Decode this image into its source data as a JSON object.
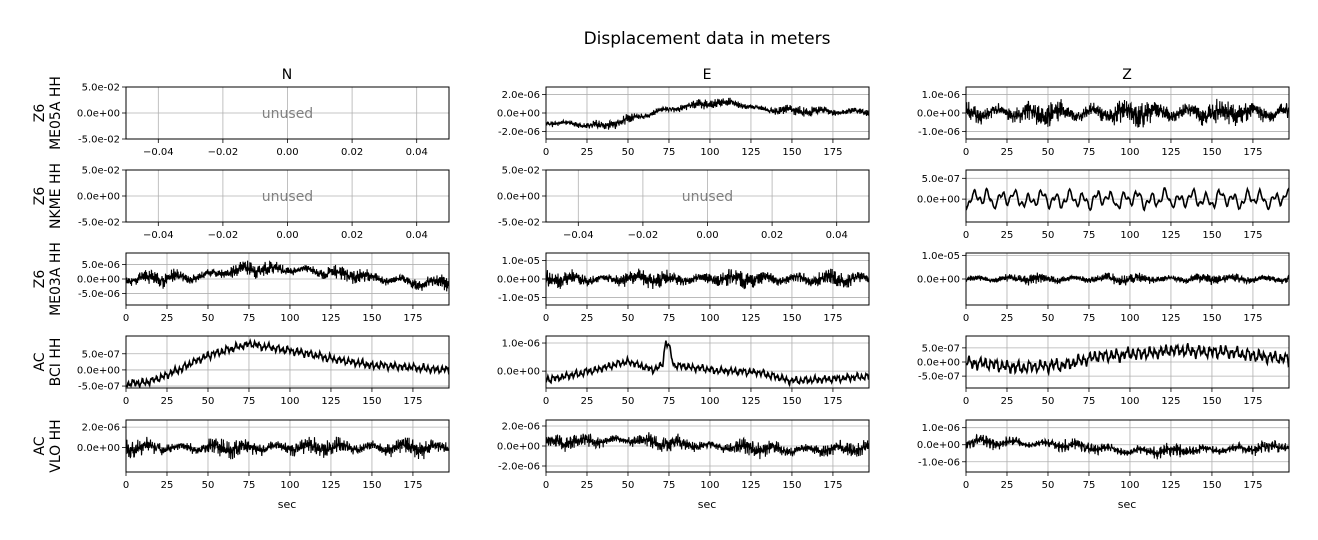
{
  "title": "Displacement data in meters",
  "column_titles": [
    "N",
    "E",
    "Z"
  ],
  "xlabel": "sec",
  "rows": [
    {
      "network": "Z6",
      "station": "ME05A HH"
    },
    {
      "network": "Z6",
      "station": "NKME HH"
    },
    {
      "network": "Z6",
      "station": "ME03A HH"
    },
    {
      "network": "AC",
      "station": "BCI HH"
    },
    {
      "network": "AC",
      "station": "VLO HH"
    }
  ],
  "unused_label": "unused",
  "colors": {
    "trace": "#000000",
    "grid": "#b0b0b0",
    "unused_text": "#808080"
  },
  "chart_data": [
    {
      "type": "line",
      "row": 0,
      "col": "N",
      "unused": true,
      "xlim": [
        -0.05,
        0.05
      ],
      "ylim": [
        -0.05,
        0.05
      ],
      "xticks": [
        -0.04,
        -0.02,
        0.0,
        0.02,
        0.04
      ],
      "xticklabels": [
        "−0.04",
        "−0.02",
        "0.00",
        "0.02",
        "0.04"
      ],
      "yticks": [
        0.05,
        0.0,
        -0.05
      ],
      "yticklabels": [
        "5.0e-02",
        "0.0e+00",
        "-5.0e-02"
      ]
    },
    {
      "type": "line",
      "row": 0,
      "col": "E",
      "unused": false,
      "xlim": [
        0,
        197
      ],
      "ylim": [
        -2.8e-06,
        2.8e-06
      ],
      "xticks": [
        0,
        25,
        50,
        75,
        100,
        125,
        150,
        175
      ],
      "xticklabels": [
        "0",
        "25",
        "50",
        "75",
        "100",
        "125",
        "150",
        "175"
      ],
      "yticks": [
        2e-06,
        0.0,
        -2e-06
      ],
      "yticklabels": [
        "2.0e-06",
        "0.0e+00",
        "-2.0e-06"
      ],
      "trend": [
        [
          0,
          -1e-06
        ],
        [
          35,
          -1.4e-06
        ],
        [
          60,
          -2e-07
        ],
        [
          80,
          6e-07
        ],
        [
          100,
          1e-06
        ],
        [
          115,
          1.1e-06
        ],
        [
          130,
          4e-07
        ],
        [
          160,
          2e-07
        ],
        [
          197,
          1e-07
        ]
      ],
      "noise_amp": 6e-07,
      "freq": 1.2,
      "seed": 11
    },
    {
      "type": "line",
      "row": 0,
      "col": "Z",
      "unused": false,
      "xlim": [
        0,
        197
      ],
      "ylim": [
        -1.4e-06,
        1.4e-06
      ],
      "xticks": [
        0,
        25,
        50,
        75,
        100,
        125,
        150,
        175
      ],
      "xticklabels": [
        "0",
        "25",
        "50",
        "75",
        "100",
        "125",
        "150",
        "175"
      ],
      "yticks": [
        1e-06,
        0.0,
        -1e-06
      ],
      "yticklabels": [
        "1.0e-06",
        "0.0e+00",
        "-1.0e-06"
      ],
      "trend": [
        [
          0,
          0.0
        ],
        [
          197,
          0.0
        ]
      ],
      "noise_amp": 7.5e-07,
      "freq": 1.6,
      "seed": 21
    },
    {
      "type": "line",
      "row": 1,
      "col": "N",
      "unused": true,
      "xlim": [
        -0.05,
        0.05
      ],
      "ylim": [
        -0.05,
        0.05
      ],
      "xticks": [
        -0.04,
        -0.02,
        0.0,
        0.02,
        0.04
      ],
      "xticklabels": [
        "−0.04",
        "−0.02",
        "0.00",
        "0.02",
        "0.04"
      ],
      "yticks": [
        0.05,
        0.0,
        -0.05
      ],
      "yticklabels": [
        "5.0e-02",
        "0.0e+00",
        "-5.0e-02"
      ]
    },
    {
      "type": "line",
      "row": 1,
      "col": "E",
      "unused": true,
      "xlim": [
        -0.05,
        0.05
      ],
      "ylim": [
        -0.05,
        0.05
      ],
      "xticks": [
        -0.04,
        -0.02,
        0.0,
        0.02,
        0.04
      ],
      "xticklabels": [
        "−0.04",
        "−0.02",
        "0.00",
        "0.02",
        "0.04"
      ],
      "yticks": [
        0.05,
        0.0,
        -0.05
      ],
      "yticklabels": [
        "5.0e-02",
        "0.0e+00",
        "-5.0e-02"
      ]
    },
    {
      "type": "line",
      "row": 1,
      "col": "Z",
      "unused": false,
      "xlim": [
        0,
        197
      ],
      "ylim": [
        -5.5e-07,
        7e-07
      ],
      "xticks": [
        0,
        25,
        50,
        75,
        100,
        125,
        150,
        175
      ],
      "xticklabels": [
        "0",
        "25",
        "50",
        "75",
        "100",
        "125",
        "150",
        "175"
      ],
      "yticks": [
        5e-07,
        0.0
      ],
      "yticklabels": [
        "5.0e-07",
        "0.0e+00"
      ],
      "trend": [
        [
          0,
          0.0
        ],
        [
          197,
          0.0
        ]
      ],
      "noise_amp": 2.2e-07,
      "freq": 0.12,
      "seed": 31,
      "smooth": true
    },
    {
      "type": "line",
      "row": 2,
      "col": "N",
      "unused": false,
      "xlim": [
        0,
        197
      ],
      "ylim": [
        -9e-06,
        9e-06
      ],
      "xticks": [
        0,
        25,
        50,
        75,
        100,
        125,
        150,
        175
      ],
      "xticklabels": [
        "0",
        "25",
        "50",
        "75",
        "100",
        "125",
        "150",
        "175"
      ],
      "yticks": [
        5e-06,
        0.0,
        -5e-06
      ],
      "yticklabels": [
        "5.0e-06",
        "0.0e+00",
        "-5.0e-06"
      ],
      "trend": [
        [
          0,
          0.0
        ],
        [
          40,
          5e-07
        ],
        [
          75,
          3.5e-06
        ],
        [
          110,
          3e-06
        ],
        [
          150,
          5e-07
        ],
        [
          180,
          -1.5e-06
        ],
        [
          197,
          -1e-06
        ]
      ],
      "noise_amp": 3e-06,
      "freq": 1.4,
      "seed": 41
    },
    {
      "type": "line",
      "row": 2,
      "col": "E",
      "unused": false,
      "xlim": [
        0,
        197
      ],
      "ylim": [
        -1.4e-05,
        1.4e-05
      ],
      "xticks": [
        0,
        25,
        50,
        75,
        100,
        125,
        150,
        175
      ],
      "xticklabels": [
        "0",
        "25",
        "50",
        "75",
        "100",
        "125",
        "150",
        "175"
      ],
      "yticks": [
        1e-05,
        0.0,
        -1e-05
      ],
      "yticklabels": [
        "1.0e-05",
        "0.0e+00",
        "-1.0e-05"
      ],
      "trend": [
        [
          0,
          0.0
        ],
        [
          197,
          0.0
        ]
      ],
      "noise_amp": 5e-06,
      "freq": 1.4,
      "seed": 51
    },
    {
      "type": "line",
      "row": 2,
      "col": "Z",
      "unused": false,
      "xlim": [
        0,
        197
      ],
      "ylim": [
        -1.1e-05,
        1.1e-05
      ],
      "xticks": [
        0,
        25,
        50,
        75,
        100,
        125,
        150,
        175
      ],
      "xticklabels": [
        "0",
        "25",
        "50",
        "75",
        "100",
        "125",
        "150",
        "175"
      ],
      "yticks": [
        1e-05,
        0.0
      ],
      "yticklabels": [
        "1.0e-05",
        "0.0e+00"
      ],
      "trend": [
        [
          0,
          0.0
        ],
        [
          197,
          0.0
        ]
      ],
      "noise_amp": 2.5e-06,
      "freq": 1.3,
      "seed": 61
    },
    {
      "type": "line",
      "row": 3,
      "col": "N",
      "unused": false,
      "xlim": [
        0,
        197
      ],
      "ylim": [
        -5.6e-07,
        1.05e-06
      ],
      "xticks": [
        0,
        25,
        50,
        75,
        100,
        125,
        150,
        175
      ],
      "xticklabels": [
        "0",
        "25",
        "50",
        "75",
        "100",
        "125",
        "150",
        "175"
      ],
      "yticks": [
        5e-07,
        0.0,
        -5e-07
      ],
      "yticklabels": [
        "5.0e-07",
        "0.0e+00",
        "-5.0e-07"
      ],
      "trend": [
        [
          0,
          -4.5e-07
        ],
        [
          15,
          -3.5e-07
        ],
        [
          30,
          -5e-08
        ],
        [
          50,
          4.5e-07
        ],
        [
          75,
          8e-07
        ],
        [
          100,
          6e-07
        ],
        [
          125,
          3.5e-07
        ],
        [
          150,
          1.5e-07
        ],
        [
          197,
          0.0
        ]
      ],
      "noise_amp": 1.2e-07,
      "freq": 0.35,
      "seed": 71,
      "smooth": true
    },
    {
      "type": "line",
      "row": 3,
      "col": "E",
      "unused": false,
      "xlim": [
        0,
        197
      ],
      "ylim": [
        -6e-07,
        1.25e-06
      ],
      "xticks": [
        0,
        25,
        50,
        75,
        100,
        125,
        150,
        175
      ],
      "xticklabels": [
        "0",
        "25",
        "50",
        "75",
        "100",
        "125",
        "150",
        "175"
      ],
      "yticks": [
        1e-06,
        0.0
      ],
      "yticklabels": [
        "1.0e-06",
        "0.0e+00"
      ],
      "trend": [
        [
          0,
          -3e-07
        ],
        [
          20,
          -1e-07
        ],
        [
          50,
          3.5e-07
        ],
        [
          65,
          5e-08
        ],
        [
          71,
          2e-07
        ],
        [
          73,
          1.05e-06
        ],
        [
          75,
          9e-07
        ],
        [
          78,
          2e-07
        ],
        [
          100,
          5e-08
        ],
        [
          130,
          -5e-08
        ],
        [
          150,
          -3.5e-07
        ],
        [
          197,
          -2e-07
        ]
      ],
      "noise_amp": 1.3e-07,
      "freq": 0.35,
      "seed": 81,
      "smooth": true
    },
    {
      "type": "line",
      "row": 3,
      "col": "Z",
      "unused": false,
      "xlim": [
        0,
        197
      ],
      "ylim": [
        -9.2e-07,
        9.2e-07
      ],
      "xticks": [
        0,
        25,
        50,
        75,
        100,
        125,
        150,
        175
      ],
      "xticklabels": [
        "0",
        "25",
        "50",
        "75",
        "100",
        "125",
        "150",
        "175"
      ],
      "yticks": [
        5e-07,
        0.0,
        -5e-07
      ],
      "yticklabels": [
        "5.0e-07",
        "0.0e+00",
        "-5.0e-07"
      ],
      "trend": [
        [
          0,
          0.0
        ],
        [
          30,
          -2e-07
        ],
        [
          60,
          -1e-07
        ],
        [
          80,
          2e-07
        ],
        [
          130,
          4e-07
        ],
        [
          160,
          3.5e-07
        ],
        [
          197,
          1e-07
        ]
      ],
      "noise_amp": 2.2e-07,
      "freq": 0.3,
      "seed": 91,
      "smooth": true
    },
    {
      "type": "line",
      "row": 4,
      "col": "N",
      "unused": false,
      "xlim": [
        0,
        197
      ],
      "ylim": [
        -2.4e-06,
        2.7e-06
      ],
      "xticks": [
        0,
        25,
        50,
        75,
        100,
        125,
        150,
        175
      ],
      "xticklabels": [
        "0",
        "25",
        "50",
        "75",
        "100",
        "125",
        "150",
        "175"
      ],
      "yticks": [
        2e-06,
        0.0
      ],
      "yticklabels": [
        "2.0e-06",
        "0.0e+00"
      ],
      "trend": [
        [
          0,
          0.0
        ],
        [
          197,
          0.0
        ]
      ],
      "noise_amp": 1e-06,
      "freq": 0.9,
      "seed": 101
    },
    {
      "type": "line",
      "row": 4,
      "col": "E",
      "unused": false,
      "xlim": [
        0,
        197
      ],
      "ylim": [
        -2.6e-06,
        2.6e-06
      ],
      "xticks": [
        0,
        25,
        50,
        75,
        100,
        125,
        150,
        175
      ],
      "xticklabels": [
        "0",
        "25",
        "50",
        "75",
        "100",
        "125",
        "150",
        "175"
      ],
      "yticks": [
        2e-06,
        0.0,
        -2e-06
      ],
      "yticklabels": [
        "2.0e-06",
        "0.0e+00",
        "-2.0e-06"
      ],
      "trend": [
        [
          0,
          4e-07
        ],
        [
          50,
          6e-07
        ],
        [
          100,
          0.0
        ],
        [
          150,
          -4e-07
        ],
        [
          197,
          -2e-07
        ]
      ],
      "noise_amp": 9e-07,
      "freq": 0.9,
      "seed": 111
    },
    {
      "type": "line",
      "row": 4,
      "col": "Z",
      "unused": false,
      "xlim": [
        0,
        197
      ],
      "ylim": [
        -1.6e-06,
        1.45e-06
      ],
      "xticks": [
        0,
        25,
        50,
        75,
        100,
        125,
        150,
        175
      ],
      "xticklabels": [
        "0",
        "25",
        "50",
        "75",
        "100",
        "125",
        "150",
        "175"
      ],
      "yticks": [
        1e-06,
        0.0,
        -1e-06
      ],
      "yticklabels": [
        "1.0e-06",
        "0.0e+00",
        "-1.0e-06"
      ],
      "trend": [
        [
          0,
          2e-07
        ],
        [
          60,
          0.0
        ],
        [
          100,
          -4e-07
        ],
        [
          150,
          -3e-07
        ],
        [
          197,
          -1e-07
        ]
      ],
      "noise_amp": 4.5e-07,
      "freq": 0.5,
      "seed": 121
    }
  ]
}
